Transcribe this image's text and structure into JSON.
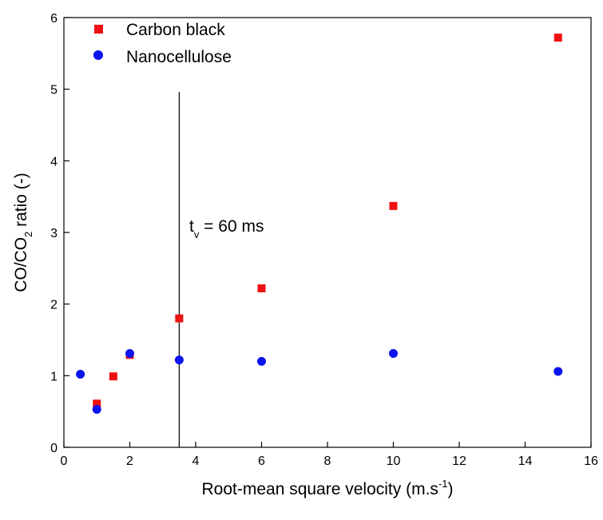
{
  "chart_data": {
    "type": "scatter",
    "xlabel": "Root-mean square velocity (m.s",
    "xlabel_sup": "-1",
    "xlabel_end": ")",
    "ylabel": "CO/CO",
    "ylabel_sub": "2",
    "ylabel_end": " ratio (-)",
    "xlim": [
      0,
      16
    ],
    "ylim": [
      0,
      6
    ],
    "xticks": [
      0,
      2,
      4,
      6,
      8,
      10,
      12,
      14,
      16
    ],
    "yticks": [
      0,
      1,
      2,
      3,
      4,
      5,
      6
    ],
    "grid": false,
    "legend_position": "top-left",
    "series": [
      {
        "name": "Carbon black",
        "marker": "square",
        "color": "#ee1111",
        "points": [
          {
            "x": 1.0,
            "y": 0.61
          },
          {
            "x": 1.5,
            "y": 0.99
          },
          {
            "x": 2.0,
            "y": 1.29
          },
          {
            "x": 3.5,
            "y": 1.8
          },
          {
            "x": 6.0,
            "y": 2.22
          },
          {
            "x": 10.0,
            "y": 3.37
          },
          {
            "x": 15.0,
            "y": 5.72
          }
        ]
      },
      {
        "name": "Nanocellulose",
        "marker": "circle",
        "color": "#0a14ee",
        "points": [
          {
            "x": 0.5,
            "y": 1.02
          },
          {
            "x": 1.0,
            "y": 0.53
          },
          {
            "x": 2.0,
            "y": 1.31
          },
          {
            "x": 3.5,
            "y": 1.22
          },
          {
            "x": 6.0,
            "y": 1.2
          },
          {
            "x": 10.0,
            "y": 1.31
          },
          {
            "x": 15.0,
            "y": 1.06
          }
        ]
      }
    ],
    "annotation": {
      "text_main": "t",
      "text_sub": "v",
      "text_rest": " = 60 ms",
      "line_x": 3.5,
      "line_y_top": 4.96
    }
  }
}
